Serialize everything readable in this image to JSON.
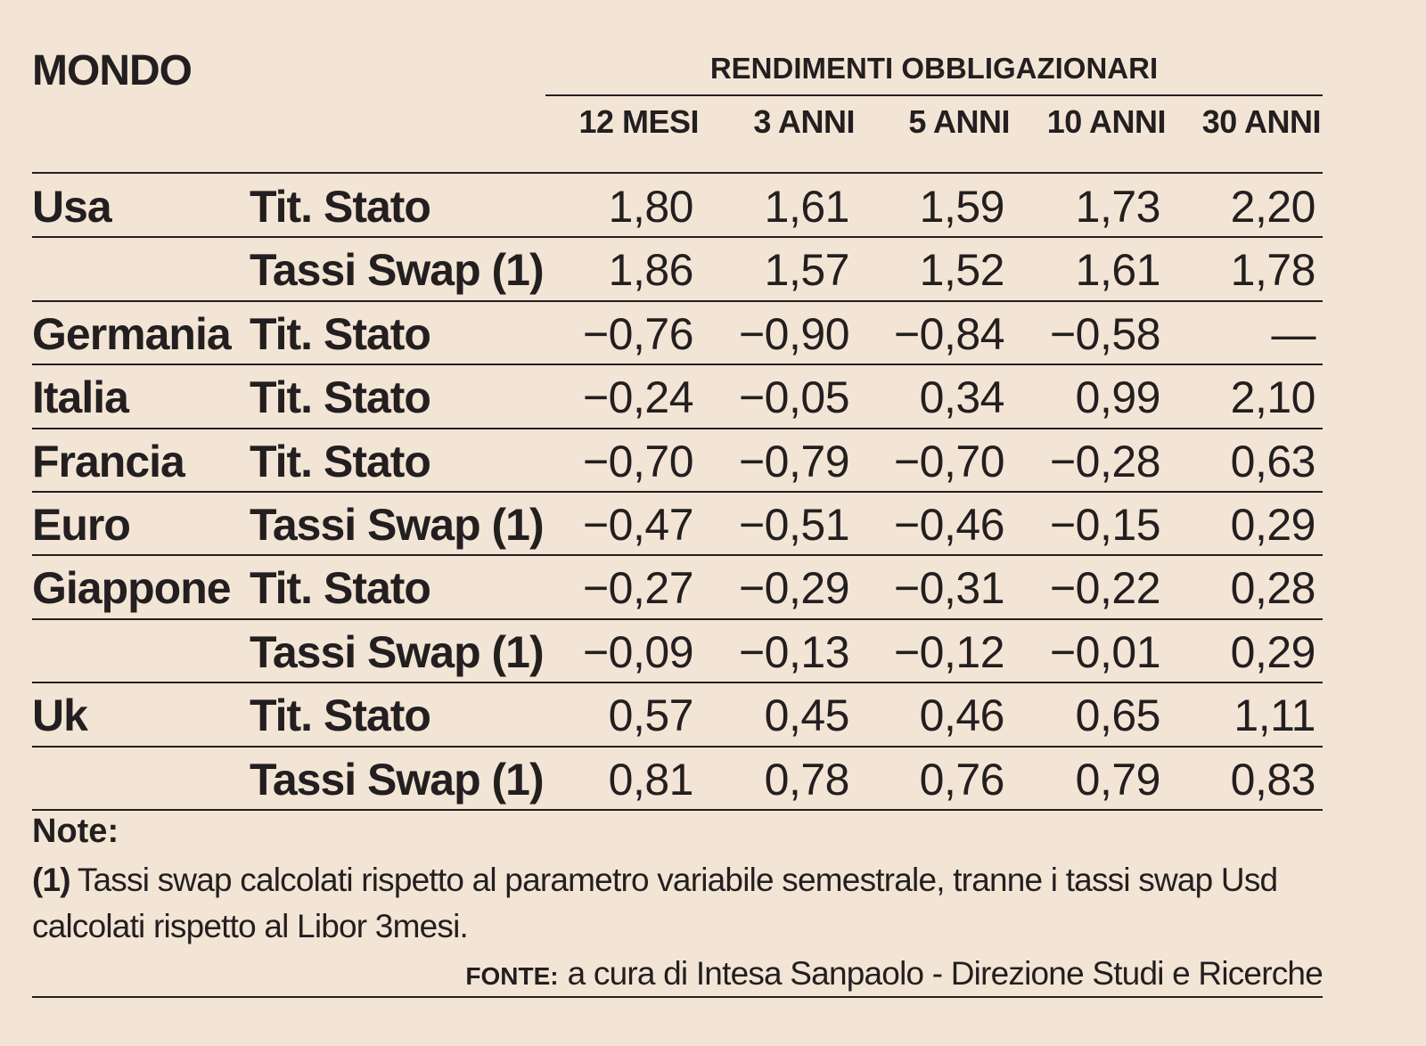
{
  "title": "MONDO",
  "group_header": "RENDIMENTI OBBLIGAZIONARI",
  "columns": [
    "12 MESI",
    "3 ANNI",
    "5 ANNI",
    "10 ANNI",
    "30 ANNI"
  ],
  "rows": [
    {
      "country": "Usa",
      "type": "Tit. Stato",
      "values": [
        "1,80",
        "1,61",
        "1,59",
        "1,73",
        "2,20"
      ]
    },
    {
      "country": "",
      "type": "Tassi Swap (1)",
      "values": [
        "1,86",
        "1,57",
        "1,52",
        "1,61",
        "1,78"
      ]
    },
    {
      "country": "Germania",
      "type": "Tit. Stato",
      "values": [
        "−0,76",
        "−0,90",
        "−0,84",
        "−0,58",
        "—"
      ]
    },
    {
      "country": "Italia",
      "type": "Tit. Stato",
      "values": [
        "−0,24",
        "−0,05",
        "0,34",
        "0,99",
        "2,10"
      ]
    },
    {
      "country": "Francia",
      "type": "Tit. Stato",
      "values": [
        "−0,70",
        "−0,79",
        "−0,70",
        "−0,28",
        "0,63"
      ]
    },
    {
      "country": "Euro",
      "type": "Tassi Swap (1)",
      "values": [
        "−0,47",
        "−0,51",
        "−0,46",
        "−0,15",
        "0,29"
      ]
    },
    {
      "country": "Giappone",
      "type": "Tit. Stato",
      "values": [
        "−0,27",
        "−0,29",
        "−0,31",
        "−0,22",
        "0,28"
      ]
    },
    {
      "country": "",
      "type": "Tassi Swap (1)",
      "values": [
        "−0,09",
        "−0,13",
        "−0,12",
        "−0,01",
        "0,29"
      ]
    },
    {
      "country": "Uk",
      "type": "Tit. Stato",
      "values": [
        "0,57",
        "0,45",
        "0,46",
        "0,65",
        "1,11"
      ]
    },
    {
      "country": "",
      "type": "Tassi Swap (1)",
      "values": [
        "0,81",
        "0,78",
        "0,76",
        "0,79",
        "0,83"
      ]
    }
  ],
  "notes": {
    "label": "Note:",
    "marker": "(1)",
    "text": "Tassi swap calcolati rispetto al parametro variabile semestrale, tranne i tassi swap Usd calcolati rispetto al Libor 3mesi."
  },
  "source": {
    "label": "FONTE:",
    "text": "a cura di Intesa Sanpaolo - Direzione Studi e Ricerche"
  }
}
